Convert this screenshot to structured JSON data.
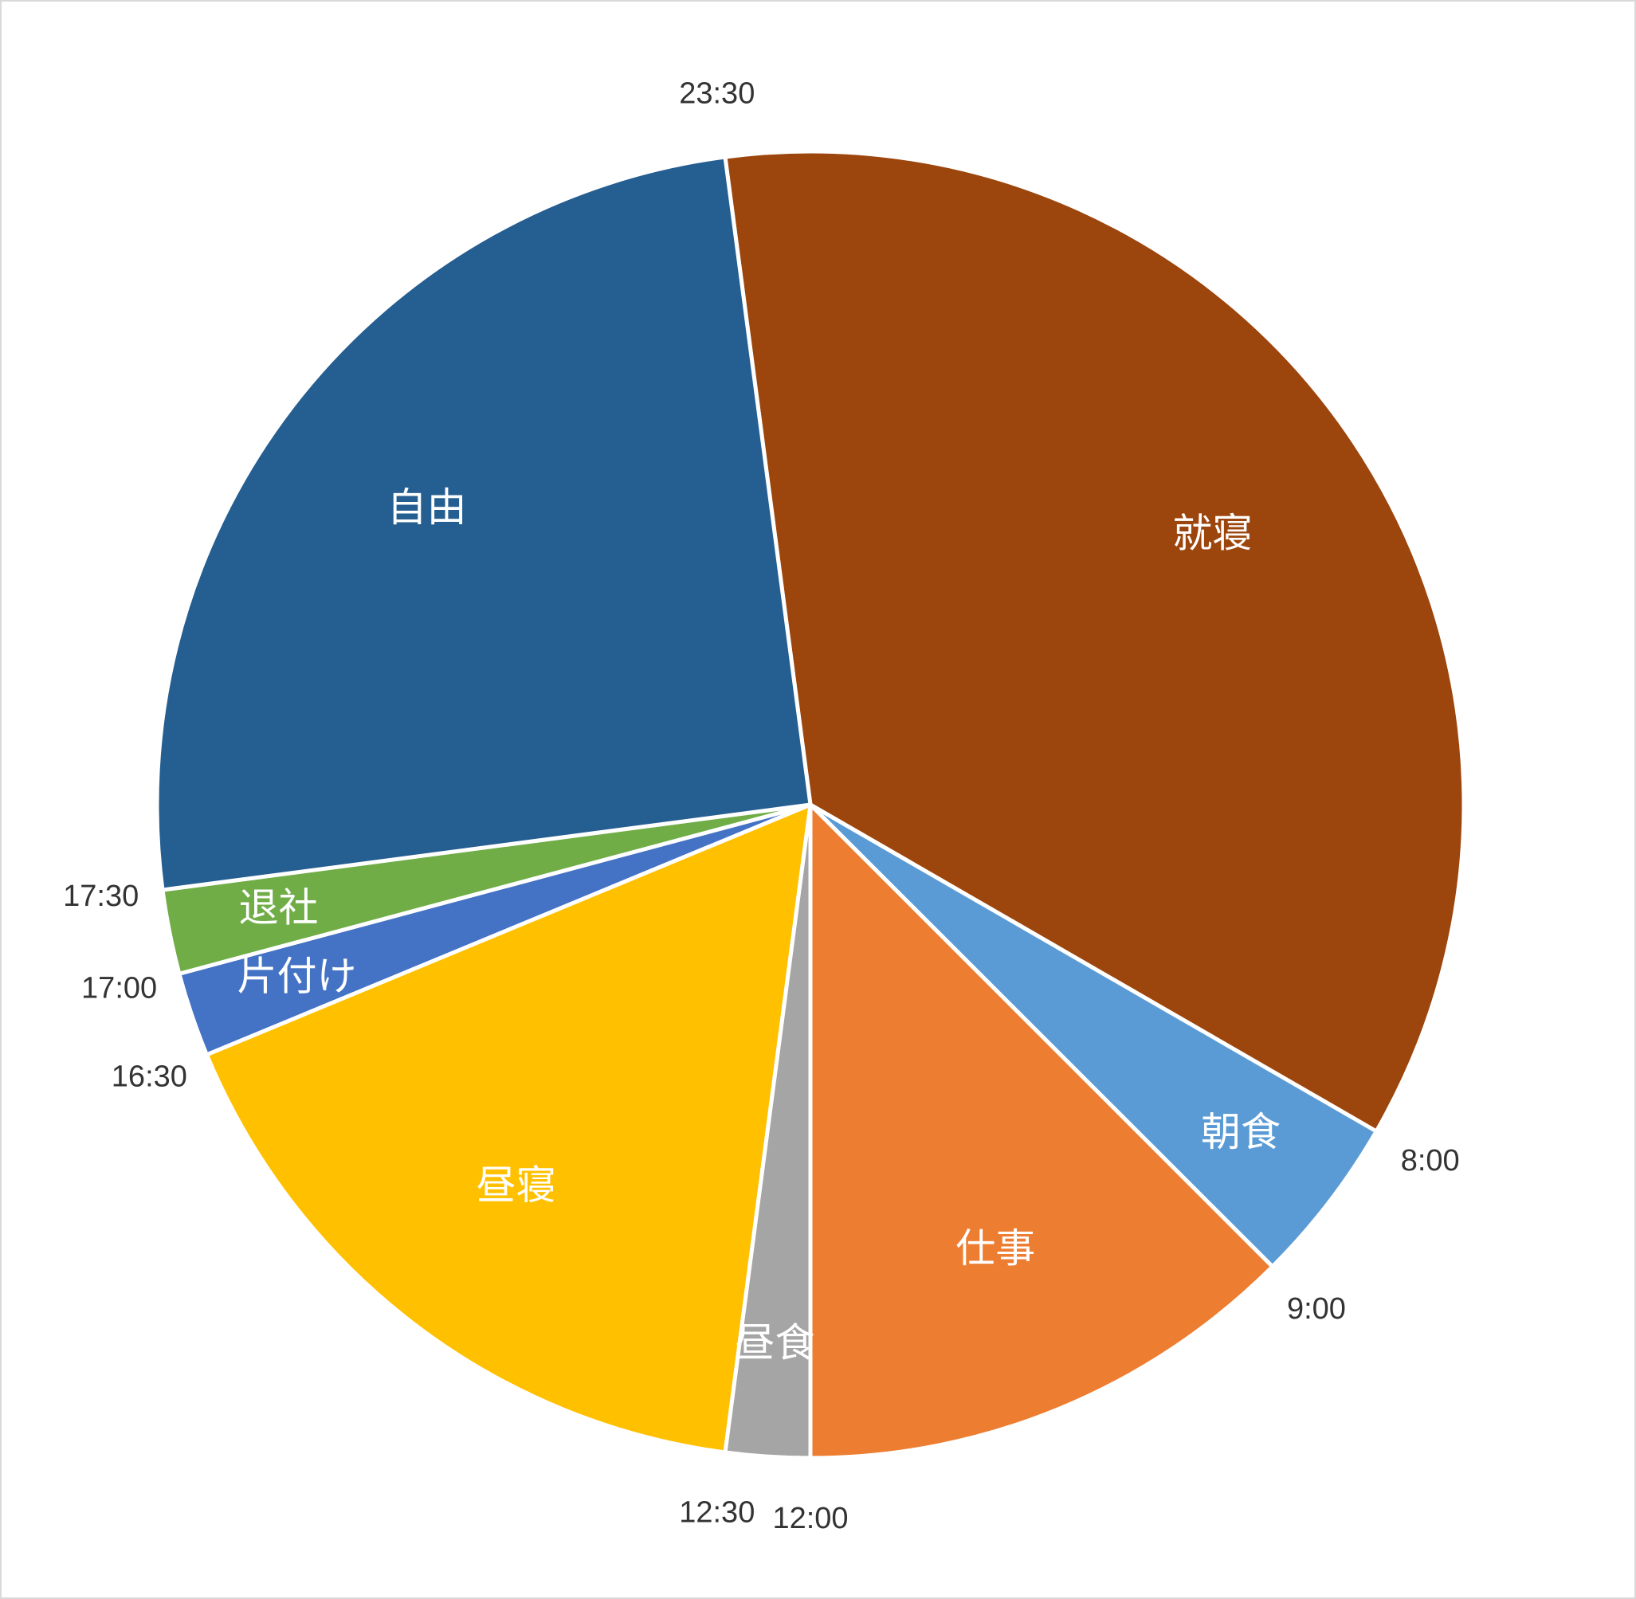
{
  "chart_data": {
    "type": "pie",
    "title": "",
    "slices": [
      {
        "label": "就寝",
        "start": "23:30",
        "end": "8:00",
        "hours": 8.5,
        "color": "#9C460D"
      },
      {
        "label": "朝食",
        "start": "8:00",
        "end": "9:00",
        "hours": 1.0,
        "color": "#5B9BD5"
      },
      {
        "label": "仕事",
        "start": "9:00",
        "end": "12:00",
        "hours": 3.0,
        "color": "#ED7D31"
      },
      {
        "label": "昼食",
        "start": "12:00",
        "end": "12:30",
        "hours": 0.5,
        "color": "#A5A5A5"
      },
      {
        "label": "昼寝",
        "start": "12:30",
        "end": "16:30",
        "hours": 4.0,
        "color": "#FFC000"
      },
      {
        "label": "片付け",
        "start": "16:30",
        "end": "17:00",
        "hours": 0.5,
        "color": "#4472C4"
      },
      {
        "label": "退社",
        "start": "17:00",
        "end": "17:30",
        "hours": 0.5,
        "color": "#70AD47"
      },
      {
        "label": "自由",
        "start": "17:30",
        "end": "23:30",
        "hours": 6.0,
        "color": "#255E91"
      }
    ],
    "boundary_labels": [
      "23:30",
      "8:00",
      "9:00",
      "12:00",
      "12:30",
      "16:30",
      "17:00",
      "17:30"
    ]
  }
}
